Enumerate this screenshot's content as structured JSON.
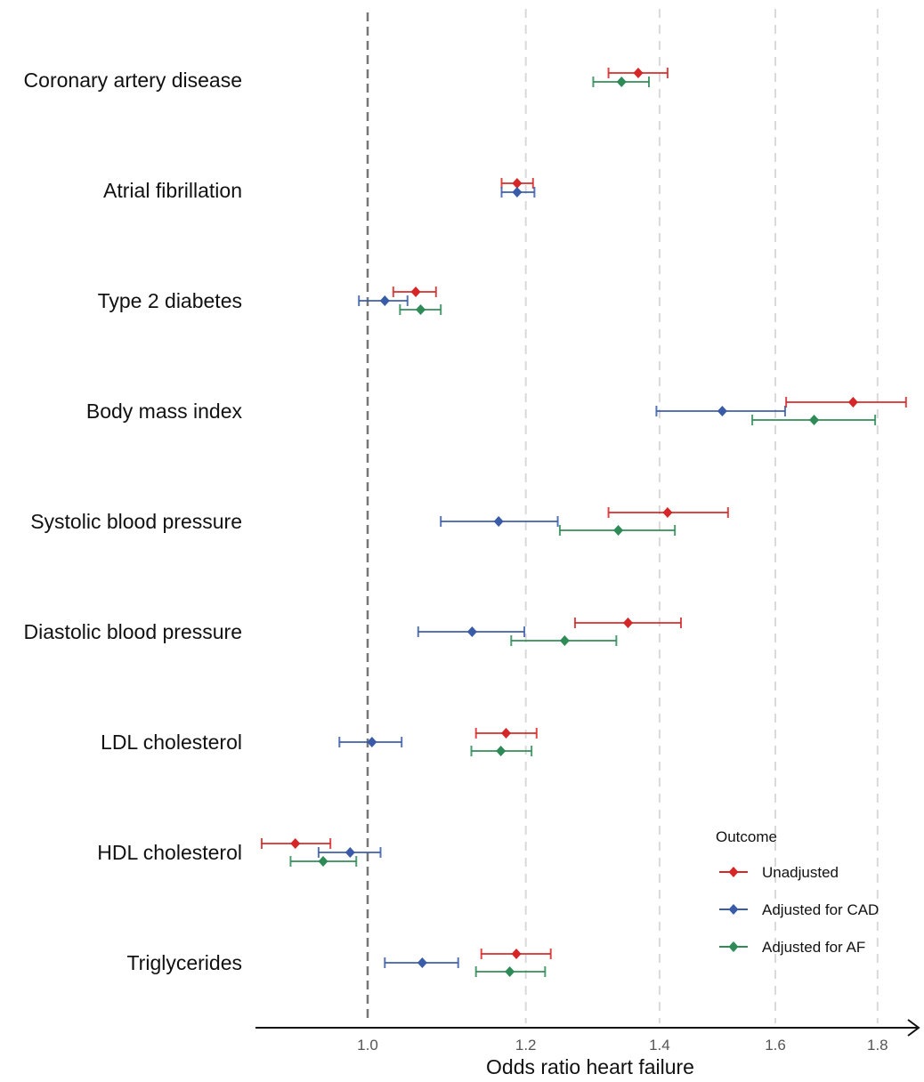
{
  "chart_data": {
    "type": "scatter",
    "subtype": "forest-plot",
    "title": "",
    "xlabel": "Odds ratio heart failure",
    "ylabel": "",
    "x_scale": "log",
    "xlim": [
      0.87,
      1.9
    ],
    "x_ticks": [
      1.0,
      1.2,
      1.4,
      1.6,
      1.8
    ],
    "x_tick_labels": [
      "1.0",
      "1.2",
      "1.4",
      "1.6",
      "1.8"
    ],
    "reference_line": 1.0,
    "grid": "vertical dashed at ticks",
    "legend": {
      "title": "Outcome",
      "position": "bottom-right"
    },
    "categories": [
      "Coronary artery disease",
      "Atrial fibrillation",
      "Type 2 diabetes",
      "Body mass index",
      "Systolic blood pressure",
      "Diastolic blood pressure",
      "LDL cholesterol",
      "HDL cholesterol",
      "Triglycerides"
    ],
    "series": [
      {
        "name": "Unadjusted",
        "color": "#d62728",
        "points": [
          {
            "category": "Coronary artery disease",
            "or": 1.366,
            "lower": 1.32,
            "upper": 1.413
          },
          {
            "category": "Atrial fibrillation",
            "or": 1.188,
            "lower": 1.167,
            "upper": 1.21
          },
          {
            "category": "Type 2 diabetes",
            "or": 1.057,
            "lower": 1.03,
            "upper": 1.082
          },
          {
            "category": "Body mass index",
            "or": 1.75,
            "lower": 1.62,
            "upper": 1.86
          },
          {
            "category": "Systolic blood pressure",
            "or": 1.413,
            "lower": 1.32,
            "upper": 1.515
          },
          {
            "category": "Diastolic blood pressure",
            "or": 1.35,
            "lower": 1.27,
            "upper": 1.435
          },
          {
            "category": "LDL cholesterol",
            "or": 1.173,
            "lower": 1.133,
            "upper": 1.215
          },
          {
            "category": "HDL cholesterol",
            "or": 0.92,
            "lower": 0.885,
            "upper": 0.958
          },
          {
            "category": "Triglycerides",
            "or": 1.187,
            "lower": 1.14,
            "upper": 1.235
          }
        ]
      },
      {
        "name": "Adjusted for CAD",
        "color": "#3a5ca8",
        "points": [
          {
            "category": "Atrial fibrillation",
            "or": 1.188,
            "lower": 1.167,
            "upper": 1.212
          },
          {
            "category": "Type 2 diabetes",
            "or": 1.02,
            "lower": 0.99,
            "upper": 1.047
          },
          {
            "category": "Body mass index",
            "or": 1.505,
            "lower": 1.395,
            "upper": 1.618
          },
          {
            "category": "Systolic blood pressure",
            "or": 1.163,
            "lower": 1.088,
            "upper": 1.245
          },
          {
            "category": "Diastolic blood pressure",
            "or": 1.128,
            "lower": 1.06,
            "upper": 1.198
          },
          {
            "category": "LDL cholesterol",
            "or": 1.005,
            "lower": 0.968,
            "upper": 1.04
          },
          {
            "category": "HDL cholesterol",
            "or": 0.98,
            "lower": 0.945,
            "upper": 1.015
          },
          {
            "category": "Triglycerides",
            "or": 1.065,
            "lower": 1.02,
            "upper": 1.11
          }
        ]
      },
      {
        "name": "Adjusted for AF",
        "color": "#2e8b57",
        "points": [
          {
            "category": "Coronary artery disease",
            "or": 1.34,
            "lower": 1.297,
            "upper": 1.383
          },
          {
            "category": "Type 2 diabetes",
            "or": 1.063,
            "lower": 1.038,
            "upper": 1.088
          },
          {
            "category": "Body mass index",
            "or": 1.673,
            "lower": 1.558,
            "upper": 1.795
          },
          {
            "category": "Systolic blood pressure",
            "or": 1.335,
            "lower": 1.248,
            "upper": 1.425
          },
          {
            "category": "Diastolic blood pressure",
            "or": 1.255,
            "lower": 1.18,
            "upper": 1.332
          },
          {
            "category": "LDL cholesterol",
            "or": 1.166,
            "lower": 1.127,
            "upper": 1.208
          },
          {
            "category": "HDL cholesterol",
            "or": 0.95,
            "lower": 0.915,
            "upper": 0.987
          },
          {
            "category": "Triglycerides",
            "or": 1.178,
            "lower": 1.133,
            "upper": 1.227
          }
        ]
      }
    ]
  }
}
